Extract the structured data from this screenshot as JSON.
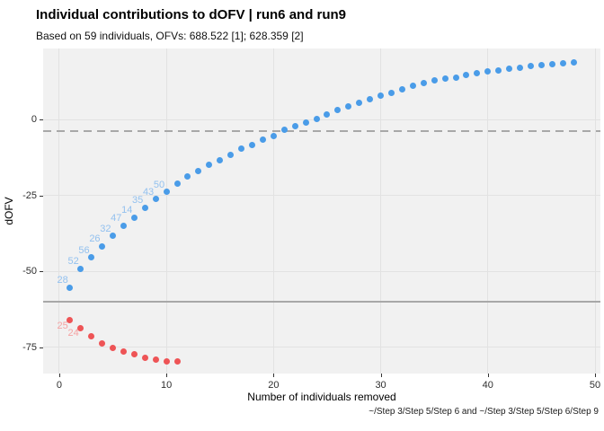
{
  "header": {
    "title": "Individual contributions to dOFV | run6 and run9",
    "subtitle": "Based on 59 individuals, OFVs: 688.522 [1]; 628.359 [2]"
  },
  "caption": "~/Step 3/Step 5/Step 6 and ~/Step 3/Step 5/Step 6/Step 9",
  "colors": {
    "panel_bg": "#f1f1f1",
    "grid": "#e2e2e2",
    "reference_line": "#a8a8a8",
    "blue_point": "#4a9ce8",
    "blue_label": "#93c1ef",
    "red_point": "#ee5456",
    "red_label": "#f5a3a3"
  },
  "chart_data": {
    "type": "scatter",
    "title": "Individual contributions to dOFV | run6 and run9",
    "subtitle": "Based on 59 individuals, OFVs: 688.522 [1]; 628.359 [2]",
    "xlabel": "Number of individuals removed",
    "ylabel": "dOFV",
    "xlim": [
      -1.5,
      50.5
    ],
    "ylim": [
      -83.7,
      23.4
    ],
    "x_ticks": [
      0,
      10,
      20,
      30,
      40,
      50
    ],
    "y_ticks": [
      0,
      -25,
      -50,
      -75
    ],
    "grid": "major-only",
    "legend": "none",
    "reference_lines": {
      "dashed_y": -3.84,
      "solid_y": -60.163
    },
    "series": [
      {
        "name": "blue_points",
        "color": "#4a9ce8",
        "label_color": "#93c1ef",
        "label_position": "above-left",
        "x": [
          1,
          2,
          3,
          4,
          5,
          6,
          7,
          8,
          9,
          10,
          11,
          12,
          13,
          14,
          15,
          16,
          17,
          18,
          19,
          20,
          21,
          22,
          23,
          24,
          25,
          26,
          27,
          28,
          29,
          30,
          31,
          32,
          33,
          34,
          35,
          36,
          37,
          38,
          39,
          40,
          41,
          42,
          43,
          44,
          45,
          46,
          47,
          48
        ],
        "y": [
          -55.3,
          -49.2,
          -45.4,
          -41.7,
          -38.4,
          -35.0,
          -32.3,
          -29.0,
          -26.2,
          -23.8,
          -21.2,
          -18.9,
          -17.1,
          -14.9,
          -13.4,
          -11.7,
          -9.7,
          -8.3,
          -6.6,
          -5.3,
          -3.5,
          -2.1,
          -0.9,
          0.3,
          1.8,
          3.0,
          4.2,
          5.5,
          6.7,
          7.9,
          8.9,
          10.0,
          11.1,
          12.0,
          12.8,
          13.4,
          13.9,
          14.7,
          15.2,
          15.8,
          16.2,
          16.6,
          17.1,
          17.6,
          17.9,
          18.3,
          18.6,
          18.7
        ],
        "point_labels": [
          "28",
          "52",
          "56",
          "26",
          "32",
          "47",
          "14",
          "35",
          "43",
          "50"
        ]
      },
      {
        "name": "red_points",
        "color": "#ee5456",
        "label_color": "#f5a3a3",
        "label_position": "below-left",
        "x": [
          1,
          2,
          3,
          4,
          5,
          6,
          7,
          8,
          9,
          10,
          11
        ],
        "y": [
          -66.1,
          -68.7,
          -71.3,
          -73.8,
          -75.3,
          -76.4,
          -77.2,
          -78.5,
          -79.0,
          -79.7,
          -79.6
        ],
        "point_labels": [
          "25",
          "24"
        ]
      }
    ]
  }
}
